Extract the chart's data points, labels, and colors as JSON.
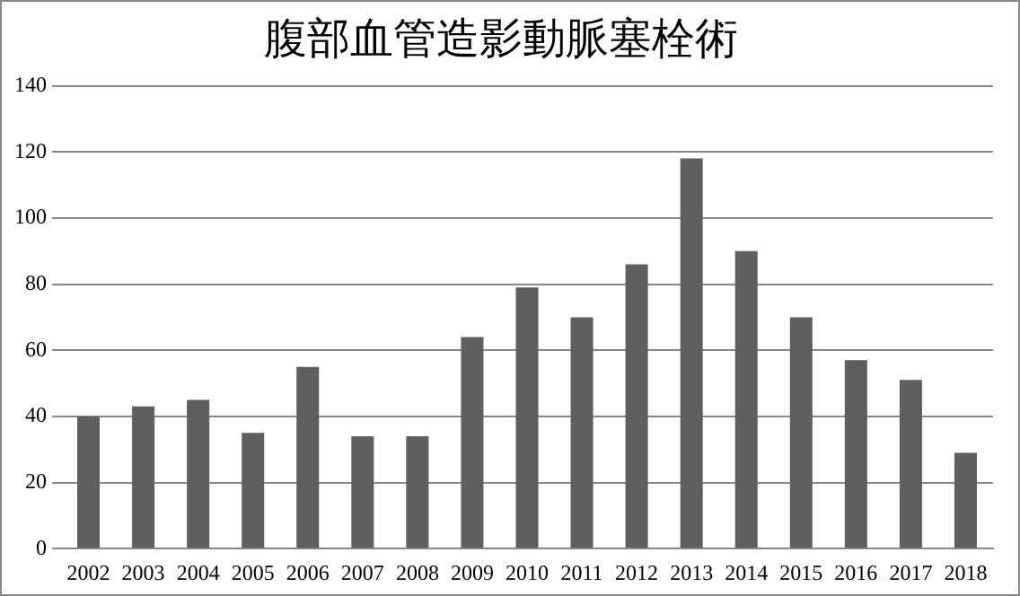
{
  "chart_data": {
    "type": "bar",
    "title": "腹部血管造影動脈塞栓術",
    "categories": [
      "2002",
      "2003",
      "2004",
      "2005",
      "2006",
      "2007",
      "2008",
      "2009",
      "2010",
      "2011",
      "2012",
      "2013",
      "2014",
      "2015",
      "2016",
      "2017",
      "2018"
    ],
    "values": [
      40,
      43,
      45,
      35,
      55,
      34,
      34,
      64,
      79,
      70,
      86,
      118,
      90,
      70,
      57,
      51,
      29
    ],
    "color": "#5f5f5f",
    "ylim": [
      0,
      140
    ],
    "yticks": [
      0,
      20,
      40,
      60,
      80,
      100,
      120,
      140
    ],
    "grid": "y",
    "legend": false
  }
}
